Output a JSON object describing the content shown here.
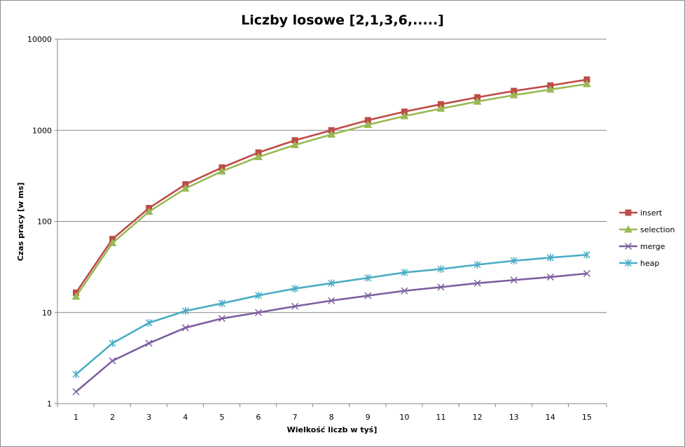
{
  "chart_data": {
    "type": "line",
    "title": "Liczby losowe [2,1,3,6,.....]",
    "xlabel": "Wielkość liczb w tyś]",
    "ylabel": "Czas pracy [w ms]",
    "y_scale": "log",
    "ylim": [
      1,
      10000
    ],
    "y_ticks": [
      "1",
      "10",
      "100",
      "1000",
      "10000"
    ],
    "x": [
      1,
      2,
      3,
      4,
      5,
      6,
      7,
      8,
      9,
      10,
      11,
      12,
      13,
      14,
      15
    ],
    "x_tick_labels": [
      "1",
      "2",
      "3",
      "4",
      "5",
      "6",
      "7",
      "8",
      "9",
      "10",
      "11",
      "12",
      "13",
      "14",
      "15"
    ],
    "grid": "horizontal",
    "legend_position": "right",
    "series": [
      {
        "name": "insert",
        "color": "#be4b48",
        "marker": "square",
        "values": [
          16.5,
          64,
          140,
          255,
          390,
          570,
          775,
          1000,
          1290,
          1600,
          1930,
          2300,
          2700,
          3100,
          3600
        ]
      },
      {
        "name": "selection",
        "color": "#98b954",
        "marker": "triangle",
        "values": [
          15,
          58,
          128,
          230,
          355,
          510,
          690,
          900,
          1150,
          1430,
          1730,
          2070,
          2430,
          2800,
          3220
        ]
      },
      {
        "name": "merge",
        "color": "#7d5fa0",
        "marker": "x",
        "values": [
          1.35,
          2.95,
          4.6,
          6.8,
          8.6,
          10.0,
          11.7,
          13.5,
          15.3,
          17.3,
          19.0,
          21.0,
          22.7,
          24.5,
          26.8
        ]
      },
      {
        "name": "heap",
        "color": "#4aacc5",
        "marker": "star",
        "values": [
          2.1,
          4.6,
          7.7,
          10.4,
          12.6,
          15.4,
          18.3,
          21.0,
          24.0,
          27.5,
          30.0,
          33.5,
          37.0,
          40.0,
          43.0
        ]
      }
    ]
  }
}
